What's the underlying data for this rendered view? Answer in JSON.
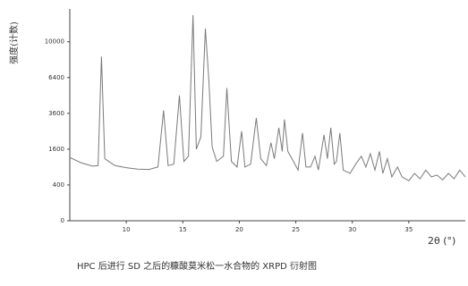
{
  "chart_data": {
    "type": "line",
    "ylabel": "强度(计数)",
    "xlabel": "2θ (°)",
    "caption": "HPC 后进行 SD 之后的糠酸莫米松一水合物的 XRPD 衍射图",
    "yscale": "sqrt",
    "xlim": [
      5,
      40
    ],
    "xticks": [
      10,
      15,
      20,
      25,
      30,
      35
    ],
    "ylim": [
      0,
      14000
    ],
    "yticks": [
      0,
      400,
      1600,
      3600,
      6400,
      10000
    ],
    "color": "#7a7a7a",
    "x": [
      5.0,
      6.0,
      7.0,
      7.5,
      7.8,
      8.1,
      9.0,
      10.0,
      11.0,
      12.0,
      12.8,
      13.3,
      13.7,
      14.2,
      14.7,
      15.1,
      15.5,
      15.9,
      16.2,
      16.6,
      17.0,
      17.3,
      17.6,
      18.0,
      18.6,
      18.9,
      19.3,
      19.8,
      20.2,
      20.5,
      21.0,
      21.5,
      21.9,
      22.4,
      22.8,
      23.1,
      23.5,
      23.8,
      24.0,
      24.3,
      24.8,
      25.2,
      25.6,
      25.9,
      26.3,
      26.7,
      27.0,
      27.5,
      27.8,
      28.1,
      28.4,
      28.6,
      28.9,
      29.2,
      29.8,
      30.3,
      30.8,
      31.2,
      31.6,
      32.0,
      32.4,
      32.7,
      33.1,
      33.5,
      34.0,
      34.4,
      35.0,
      35.5,
      36.0,
      36.5,
      37.0,
      37.5,
      38.0,
      38.5,
      39.0,
      39.5,
      40.0
    ],
    "values": [
      1250,
      1050,
      930,
      950,
      8400,
      1200,
      950,
      880,
      830,
      820,
      900,
      3800,
      950,
      1000,
      4900,
      1100,
      1300,
      13200,
      1600,
      2200,
      11500,
      6300,
      1700,
      1100,
      1300,
      5500,
      1100,
      900,
      2500,
      900,
      1000,
      3300,
      1200,
      950,
      1900,
      1200,
      2700,
      1500,
      3200,
      1500,
      1100,
      800,
      2400,
      900,
      900,
      1300,
      800,
      2300,
      1200,
      2700,
      1000,
      1100,
      2400,
      800,
      700,
      1000,
      1300,
      900,
      1400,
      800,
      1500,
      700,
      1200,
      600,
      900,
      600,
      500,
      700,
      550,
      800,
      600,
      650,
      520,
      700,
      550,
      800,
      600
    ]
  }
}
